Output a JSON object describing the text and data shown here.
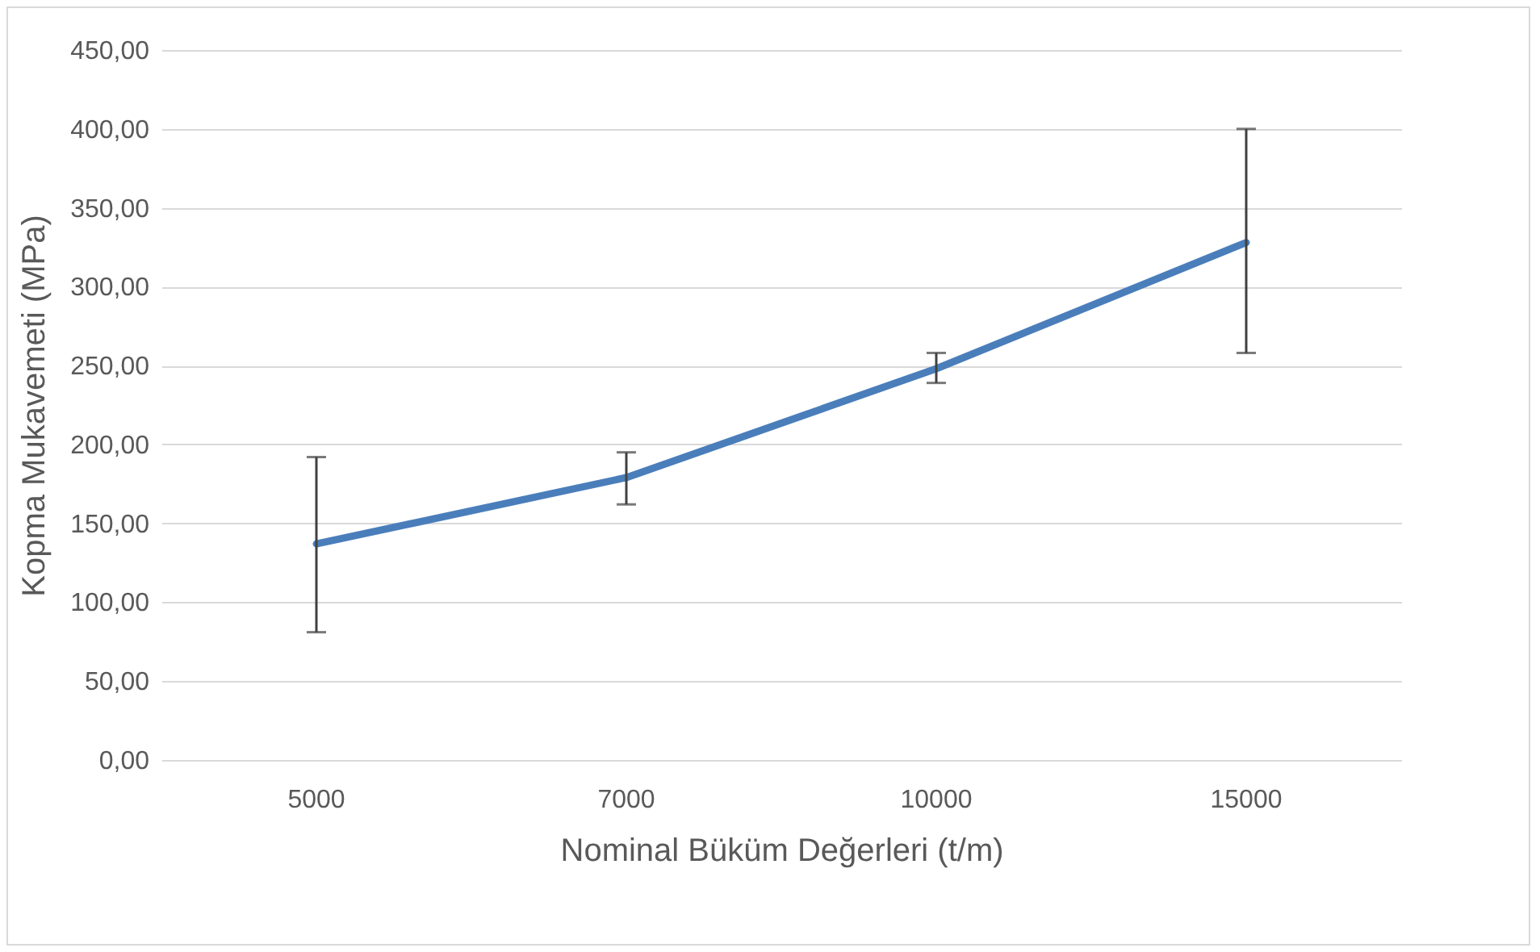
{
  "chart_data": {
    "type": "line",
    "xlabel": "Nominal Büküm Değerleri (t/m)",
    "ylabel": "Kopma Mukavemeti  (MPa)",
    "categories": [
      "5000",
      "7000",
      "10000",
      "15000"
    ],
    "series": [
      {
        "color": "#4a7ebb",
        "values": [
          137,
          179,
          248,
          328
        ],
        "errors": [
          [
            81,
            192
          ],
          [
            162,
            195
          ],
          [
            239,
            258
          ],
          [
            258,
            400
          ]
        ]
      }
    ],
    "ylim": [
      0,
      450
    ],
    "yticks": [
      {
        "value": 0,
        "label": "0,00"
      },
      {
        "value": 50,
        "label": "50,00"
      },
      {
        "value": 100,
        "label": "100,00"
      },
      {
        "value": 150,
        "label": "150,00"
      },
      {
        "value": 200,
        "label": "200,00"
      },
      {
        "value": 250,
        "label": "250,00"
      },
      {
        "value": 300,
        "label": "300,00"
      },
      {
        "value": 350,
        "label": "350,00"
      },
      {
        "value": 400,
        "label": "400,00"
      },
      {
        "value": 450,
        "label": "450,00"
      }
    ],
    "grid": "y",
    "marker": "none",
    "line_style": "solid",
    "legend": false
  }
}
